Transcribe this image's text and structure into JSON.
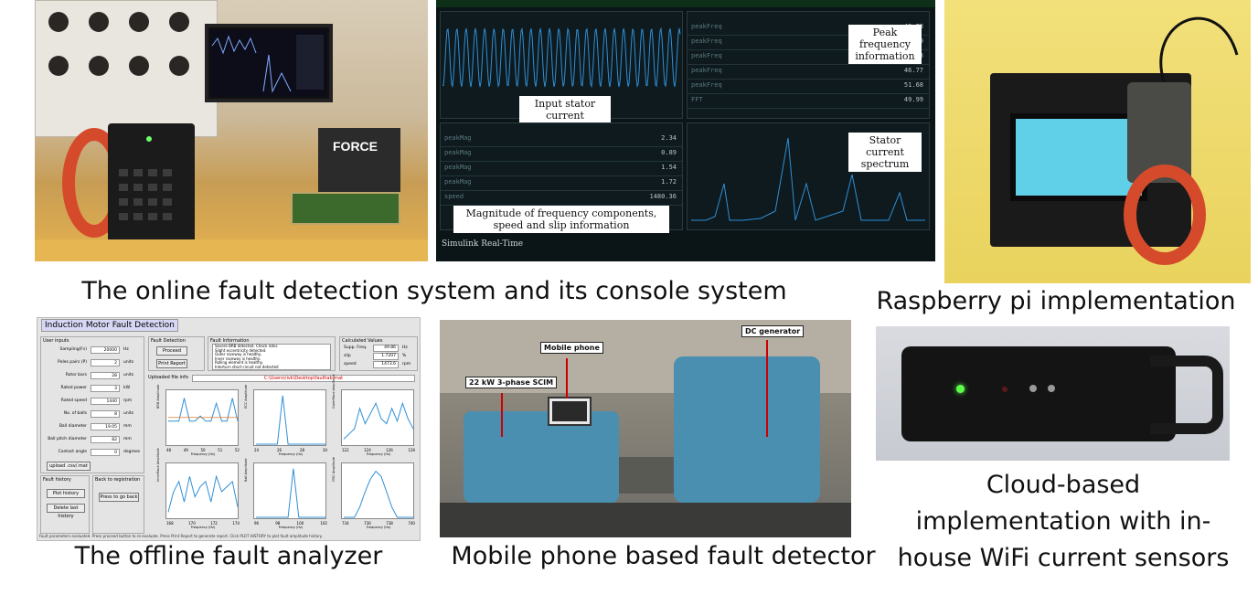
{
  "captions": {
    "online": "The online fault detection system and its console system",
    "raspberry": "Raspberry pi implementation",
    "offline": "The offline fault analyzer",
    "mobile": "Mobile phone based fault detector",
    "cloud_line1": "Cloud-based",
    "cloud_line2": "implementation with in-",
    "cloud_line3": "house WiFi current sensors"
  },
  "console": {
    "input_label": "Input stator current",
    "peak_label": "Peak frequency information",
    "spectrum_label": "Stator current spectrum",
    "magnitude_label": "Magnitude of frequency components, speed and slip information",
    "footer": "Simulink Real-Time",
    "force_label": "FORCE"
  },
  "analyzer": {
    "title": "Induction Motor Fault Detection",
    "user_inputs": "User inputs",
    "fault_detection": "Fault Detection",
    "fault_information": "Fault Information",
    "calculated_values": "Calculated Values",
    "uploaded_file": "Uploaded file info",
    "proceed": "Proceed",
    "print_report": "Print Report",
    "upload": "upload .csv/.mat",
    "fault_history": "Fault history",
    "plot_history": "Plot history",
    "delete_history": "Delete last history",
    "back": "Back to registration",
    "go_back": "Press to go back",
    "inputs": [
      {
        "label": "Sampling(Fs)",
        "value": "20000",
        "unit": "Hz"
      },
      {
        "label": "Poles pairs (P)",
        "value": "2",
        "unit": "units"
      },
      {
        "label": "Rotor bars",
        "value": "28",
        "unit": "units"
      },
      {
        "label": "Rated power",
        "value": "3",
        "unit": "kW"
      },
      {
        "label": "Rated speed",
        "value": "1440",
        "unit": "rpm"
      },
      {
        "label": "No. of balls",
        "value": "8",
        "unit": "units"
      },
      {
        "label": "Ball diameter",
        "value": "19.05",
        "unit": "mm"
      },
      {
        "label": "Ball pitch diameter",
        "value": "82",
        "unit": "mm"
      },
      {
        "label": "Contact angle",
        "value": "0",
        "unit": "degrees"
      }
    ],
    "calc": [
      {
        "label": "Supp. Freq.",
        "value": "49.86",
        "unit": "Hz"
      },
      {
        "label": "slip",
        "value": "1.7207",
        "unit": "%"
      },
      {
        "label": "speed",
        "value": "1473.6",
        "unit": "rpm"
      }
    ],
    "fault_lines": [
      "Severe BRB detected. Check rotor.",
      "Slight eccentricity detected.",
      "Outer raceway is healthy.",
      "Inner raceway is healthy.",
      "Rolling element is healthy.",
      "Interturn short circuit not detected"
    ],
    "file_path": "C:\\Users\\rivk\\Desktop\\faultlab.mat",
    "status": "Fault parameters evaluated. Press proceed button to re-evaluate. Press Print Report to generate report. Click PLOT HISTORY to plot fault amplitude history.",
    "plot_xlabel": "Frequency (Hz)",
    "plots": [
      {
        "ylabel": "BRB Amplitude",
        "ticks": [
          "48",
          "49",
          "50",
          "51",
          "52"
        ]
      },
      {
        "ylabel": "ECC Amplitude",
        "ticks": [
          "24",
          "26",
          "28",
          "30"
        ]
      },
      {
        "ylabel": "OuterRace Amplitude",
        "ticks": [
          "122",
          "124",
          "126",
          "128"
        ]
      },
      {
        "ylabel": "InnerRace Amplitude",
        "ticks": [
          "168",
          "170",
          "172",
          "174"
        ]
      },
      {
        "ylabel": "Ball Amplitude",
        "ticks": [
          "96",
          "98",
          "100",
          "102"
        ]
      },
      {
        "ylabel": "ITSC Amplitude",
        "ticks": [
          "734",
          "736",
          "738",
          "740"
        ]
      }
    ]
  },
  "mobile": {
    "phone_tag": "Mobile phone",
    "dc_tag": "DC generator",
    "motor_tag": "22 kW 3-phase SCIM"
  },
  "colors": {
    "clamp_red": "#d64a2c",
    "console_bg": "#0b1417",
    "signal_blue": "#2f8fd6",
    "motor_blue": "#4a8fb0",
    "pi_yellow": "#e9d35e",
    "wifi_led": "#5cff4a"
  }
}
